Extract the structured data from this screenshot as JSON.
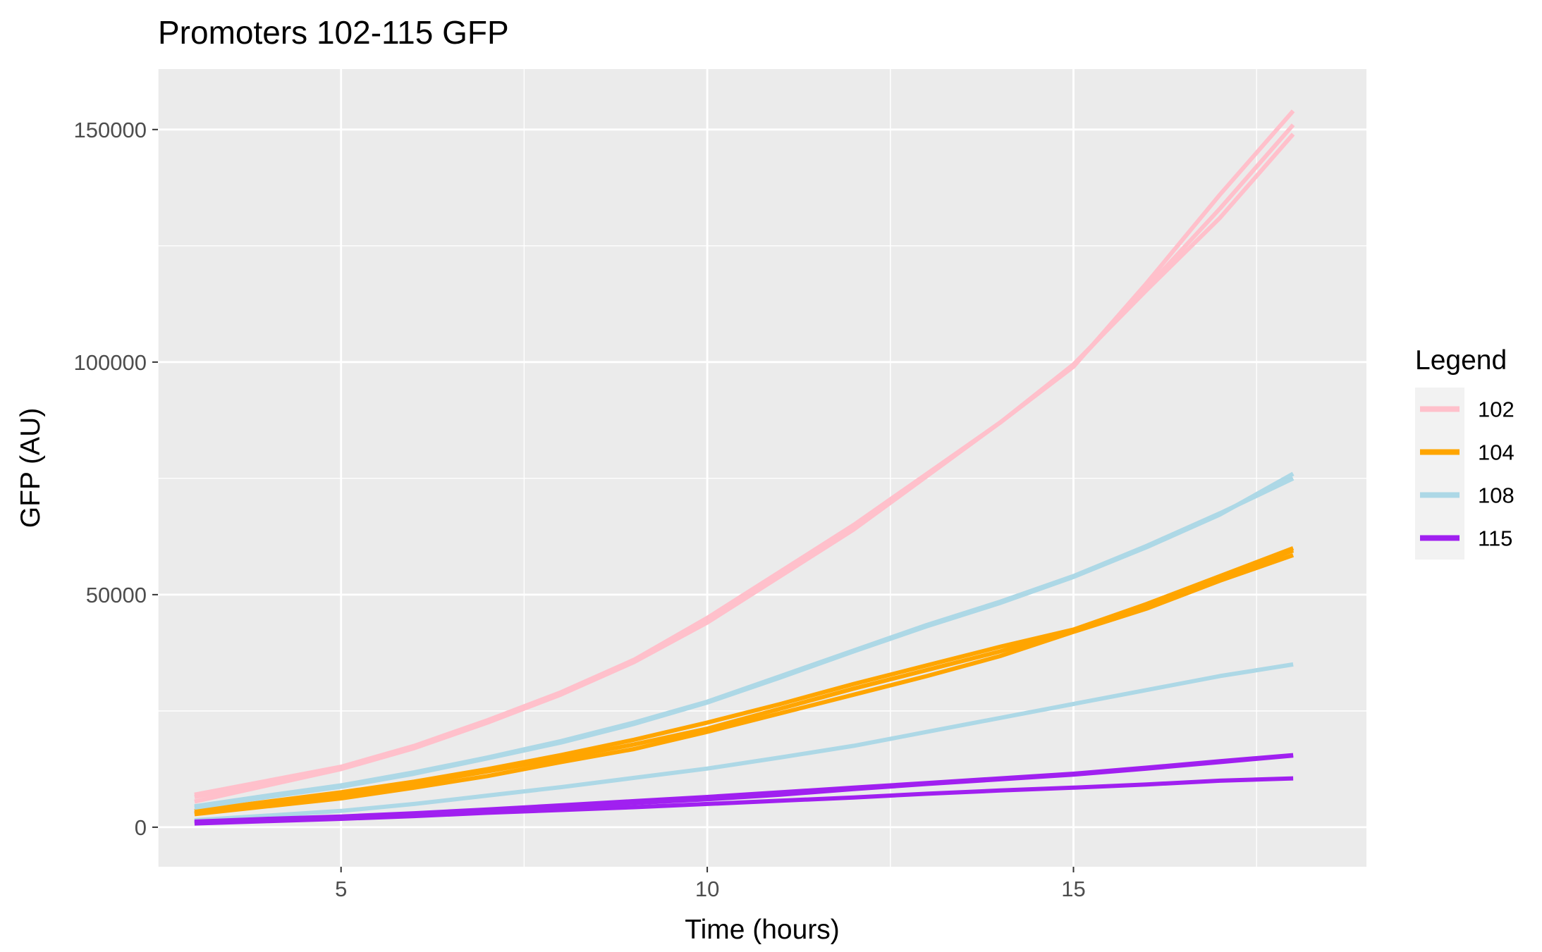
{
  "chart_data": {
    "type": "line",
    "title": "Promoters 102-115 GFP",
    "xlabel": "Time (hours)",
    "ylabel": "GFP (AU)",
    "xlim": [
      2.5,
      19
    ],
    "ylim": [
      -8500,
      163000
    ],
    "x_ticks": [
      5,
      10,
      15
    ],
    "x_tick_labels": [
      "5",
      "10",
      "15"
    ],
    "y_ticks": [
      0,
      50000,
      100000,
      150000
    ],
    "y_tick_labels": [
      "0",
      "50000",
      "100000",
      "150000"
    ],
    "grid": true,
    "legend": {
      "title": "Legend",
      "placement": "right",
      "entries": [
        {
          "label": "102",
          "color": "#FFC0CB"
        },
        {
          "label": "104",
          "color": "#FFA500"
        },
        {
          "label": "108",
          "color": "#ADD8E6"
        },
        {
          "label": "115",
          "color": "#A020F0"
        }
      ]
    },
    "x": [
      3,
      4,
      5,
      6,
      7,
      8,
      9,
      10,
      11,
      12,
      13,
      14,
      15,
      16,
      17,
      18
    ],
    "series": [
      {
        "name": "102",
        "color": "#FFC0CB",
        "values": [
          7000,
          10000,
          13000,
          17500,
          23000,
          29000,
          36000,
          45000,
          55000,
          65000,
          76000,
          87000,
          99000,
          117000,
          136000,
          154000
        ]
      },
      {
        "name": "102",
        "color": "#FFC0CB",
        "values": [
          5500,
          9000,
          12500,
          17000,
          22500,
          28500,
          35500,
          44000,
          54000,
          64000,
          75500,
          87000,
          99500,
          115500,
          131000,
          149000
        ]
      },
      {
        "name": "102",
        "color": "#FFC0CB",
        "values": [
          6500,
          9500,
          12800,
          17200,
          22800,
          28800,
          35800,
          44500,
          54500,
          64500,
          75800,
          87000,
          99200,
          116000,
          133000,
          151000
        ]
      },
      {
        "name": "104",
        "color": "#FFA500",
        "values": [
          3500,
          5500,
          7500,
          9800,
          12500,
          15500,
          18800,
          22500,
          26500,
          30800,
          34800,
          38800,
          42500,
          48000,
          54000,
          60000
        ]
      },
      {
        "name": "104",
        "color": "#FFA500",
        "values": [
          3000,
          5000,
          7000,
          9300,
          12000,
          14800,
          17800,
          21200,
          25500,
          29800,
          33800,
          37800,
          42300,
          47500,
          53500,
          59500
        ]
      },
      {
        "name": "104",
        "color": "#FFA500",
        "values": [
          2800,
          4500,
          6200,
          8500,
          11000,
          14000,
          16800,
          20500,
          24500,
          28500,
          32500,
          36800,
          42000,
          47000,
          53000,
          58500
        ]
      },
      {
        "name": "108",
        "color": "#ADD8E6",
        "values": [
          4500,
          6800,
          9000,
          11800,
          15000,
          18500,
          22500,
          27000,
          32500,
          38000,
          43500,
          48500,
          54000,
          60500,
          67500,
          75000
        ]
      },
      {
        "name": "108",
        "color": "#ADD8E6",
        "values": [
          4200,
          6500,
          8700,
          11500,
          14800,
          18200,
          22200,
          26800,
          32200,
          37800,
          43200,
          48200,
          53800,
          60200,
          67200,
          76000
        ]
      },
      {
        "name": "108",
        "color": "#ADD8E6",
        "values": [
          1500,
          2500,
          3500,
          5000,
          6800,
          8600,
          10600,
          12600,
          15000,
          17500,
          20500,
          23500,
          26500,
          29500,
          32500,
          35000
        ]
      },
      {
        "name": "115",
        "color": "#A020F0",
        "values": [
          1200,
          1800,
          2300,
          3000,
          3800,
          4700,
          5600,
          6500,
          7500,
          8500,
          9500,
          10500,
          11500,
          12800,
          14200,
          15500
        ]
      },
      {
        "name": "115",
        "color": "#A020F0",
        "values": [
          1000,
          1600,
          2100,
          2700,
          3500,
          4300,
          5200,
          6000,
          7000,
          8200,
          9300,
          10300,
          11300,
          12600,
          14000,
          15400
        ]
      },
      {
        "name": "115",
        "color": "#A020F0",
        "values": [
          800,
          1300,
          1800,
          2400,
          3100,
          3700,
          4300,
          5000,
          5700,
          6400,
          7200,
          7900,
          8500,
          9200,
          10000,
          10500
        ]
      }
    ],
    "colors": {
      "panel_background": "#EBEBEB",
      "grid_major": "#FFFFFF",
      "legend_key_background": "#F2F2F2",
      "tick_color": "#333333",
      "tick_label_color": "#4D4D4D"
    }
  }
}
